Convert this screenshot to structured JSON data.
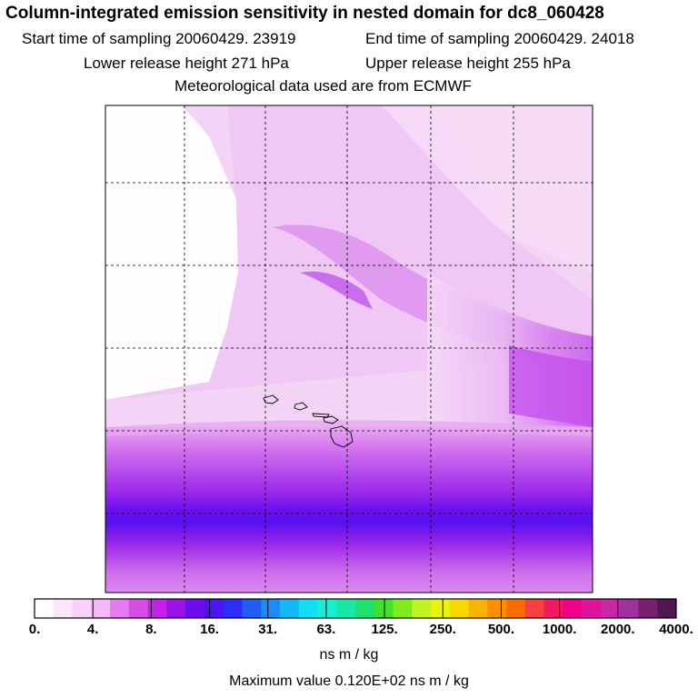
{
  "header": {
    "title": "Column-integrated emission sensitivity in nested domain for dc8_060428",
    "start_label": "Start time of sampling 20060429. 23919",
    "end_label": "End time of sampling 20060429. 24018",
    "lower_label": "Lower release height  271 hPa",
    "upper_label": "Upper release height  255 hPa",
    "met_label": "Meteorological data used are from ECMWF"
  },
  "chart_data": {
    "type": "heatmap",
    "colorbar": {
      "tick_labels": [
        "0.",
        "4.",
        "8.",
        "16.",
        "31.",
        "63.",
        "125.",
        "250.",
        "500.",
        "1000.",
        "2000.",
        "4000."
      ],
      "unit": "ns m / kg",
      "colors": [
        "#ffffff",
        "#fbe6fb",
        "#f8d2f8",
        "#f3b8f5",
        "#e47cf0",
        "#d84ce8",
        "#c520e8",
        "#9912e6",
        "#6e0cf0",
        "#4a14f5",
        "#2a2ef8",
        "#1f5cf8",
        "#1a8cf8",
        "#14b8f4",
        "#10e0f0",
        "#14f0d4",
        "#18e8a4",
        "#20e070",
        "#40e030",
        "#80ec20",
        "#c0f420",
        "#e8f410",
        "#f8d800",
        "#f8b400",
        "#f89000",
        "#f86c00",
        "#f84040",
        "#f01a60",
        "#f00088",
        "#e0149c",
        "#c828a8",
        "#a030a0",
        "#782070",
        "#501850"
      ]
    },
    "max_value_text": "Maximum value  0.120E+02 ns m / kg",
    "grid": true,
    "field_description_values": {
      "max": 12.0,
      "units": "ns m / kg"
    }
  },
  "colors": {
    "frame": "#000000",
    "gridline": "#000000",
    "coast": "#000000"
  }
}
